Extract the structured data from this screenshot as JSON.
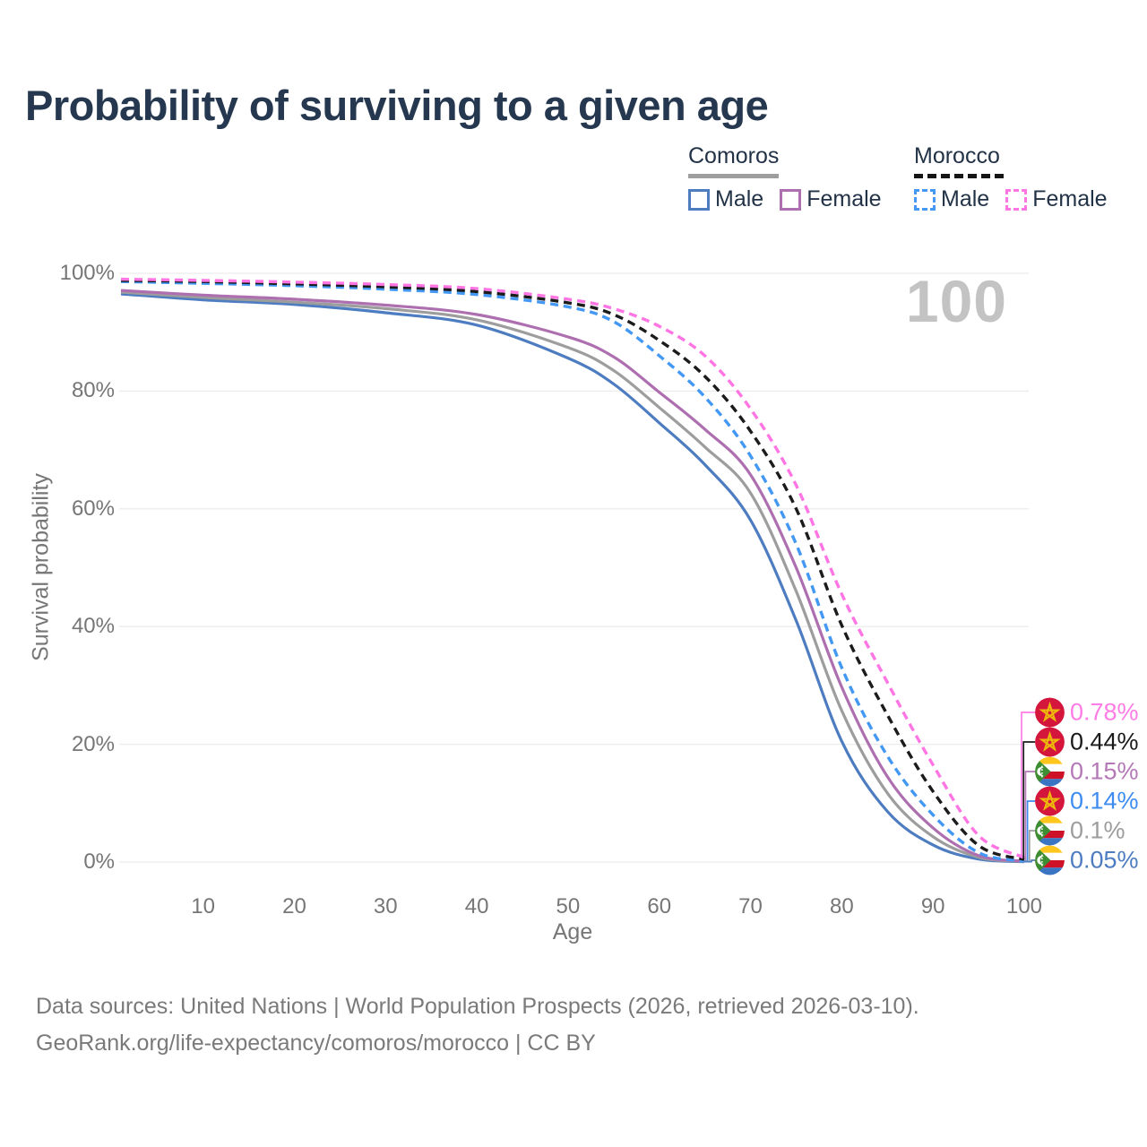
{
  "title": "Probability of surviving to a given age",
  "watermark_age": "100",
  "legend": {
    "groups": [
      {
        "label": "Comoros",
        "line_style": "solid",
        "underline_color": "#9e9e9e",
        "items": [
          {
            "label": "Male",
            "color": "#4d7cc0"
          },
          {
            "label": "Female",
            "color": "#ae6fb0"
          }
        ]
      },
      {
        "label": "Morocco",
        "line_style": "dashed",
        "underline_color": "#151515",
        "items": [
          {
            "label": "Male",
            "color": "#4398f4"
          },
          {
            "label": "Female",
            "color": "#ff75e3"
          }
        ]
      }
    ]
  },
  "axes": {
    "x_label": "Age",
    "y_label": "Survival probability"
  },
  "chart_data": {
    "type": "line",
    "title": "Probability of surviving to a given age",
    "xlabel": "Age",
    "ylabel": "Survival probability",
    "xlim": [
      1,
      100
    ],
    "ylim": [
      0,
      100
    ],
    "grid": "horizontal",
    "x_ticks": [
      10,
      20,
      30,
      40,
      50,
      60,
      70,
      80,
      90,
      100
    ],
    "y_ticks": [
      {
        "value": 0,
        "label": "0%"
      },
      {
        "value": 20,
        "label": "20%"
      },
      {
        "value": 40,
        "label": "40%"
      },
      {
        "value": 60,
        "label": "60%"
      },
      {
        "value": 80,
        "label": "80%"
      },
      {
        "value": 100,
        "label": "100%"
      }
    ],
    "x": [
      1,
      10,
      20,
      30,
      40,
      50,
      55,
      60,
      65,
      70,
      75,
      80,
      85,
      90,
      95,
      100
    ],
    "series": [
      {
        "name": "Comoros Male",
        "country": "Comoros",
        "sex": "Male",
        "color": "#4d7cc0",
        "dashed": false,
        "end_value_pct": 0.05,
        "values": [
          96.5,
          95.5,
          94.7,
          93.3,
          91.2,
          85.6,
          81.2,
          74.6,
          67.5,
          58.1,
          41.0,
          20.5,
          8.6,
          2.9,
          0.5,
          0.05
        ]
      },
      {
        "name": "Comoros",
        "country": "Comoros",
        "sex": "Both",
        "color": "#9d9d9d",
        "dashed": false,
        "end_value_pct": 0.1,
        "values": [
          96.8,
          95.9,
          95.1,
          94.0,
          92.1,
          87.4,
          83.5,
          77.2,
          70.5,
          62.7,
          46.0,
          25.7,
          11.7,
          4.3,
          0.8,
          0.1
        ]
      },
      {
        "name": "Comoros Female",
        "country": "Comoros",
        "sex": "Female",
        "color": "#ae6fb0",
        "dashed": false,
        "end_value_pct": 0.15,
        "values": [
          97.1,
          96.3,
          95.6,
          94.6,
          93.0,
          89.2,
          85.8,
          79.8,
          73.5,
          65.8,
          50.0,
          29.7,
          14.5,
          5.8,
          1.1,
          0.15
        ]
      },
      {
        "name": "Morocco Male",
        "country": "Morocco",
        "sex": "Male",
        "color": "#4398f4",
        "dashed": true,
        "end_value_pct": 0.14,
        "values": [
          98.6,
          98.3,
          97.9,
          97.3,
          96.4,
          94.3,
          91.8,
          86.0,
          79.0,
          69.0,
          54.0,
          33.0,
          18.0,
          8.0,
          1.6,
          0.14
        ]
      },
      {
        "name": "Morocco",
        "country": "Morocco",
        "sex": "Both",
        "color": "#1b1b1b",
        "dashed": true,
        "end_value_pct": 0.44,
        "values": [
          98.8,
          98.6,
          98.2,
          97.7,
          96.9,
          95.0,
          93.0,
          88.6,
          82.5,
          73.2,
          60.0,
          40.2,
          25.0,
          12.0,
          2.8,
          0.44
        ]
      },
      {
        "name": "Morocco Female",
        "country": "Morocco",
        "sex": "Female",
        "color": "#ff75e3",
        "dashed": true,
        "end_value_pct": 0.78,
        "values": [
          99.0,
          98.8,
          98.5,
          98.1,
          97.4,
          95.6,
          94.0,
          91.0,
          86.0,
          77.0,
          64.0,
          45.5,
          30.5,
          16.5,
          4.5,
          0.78
        ]
      }
    ],
    "legend_position": "top-right"
  },
  "end_labels": [
    {
      "value": "0.78%",
      "color": "#ff7ce6",
      "flag": "morocco",
      "series": "Morocco Female"
    },
    {
      "value": "0.44%",
      "color": "#1b1b1b",
      "flag": "morocco",
      "series": "Morocco"
    },
    {
      "value": "0.15%",
      "color": "#b478b6",
      "flag": "comoros",
      "series": "Comoros Female"
    },
    {
      "value": "0.14%",
      "color": "#3e8cf0",
      "flag": "morocco",
      "series": "Morocco Male"
    },
    {
      "value": "0.1%",
      "color": "#9d9d9d",
      "flag": "comoros",
      "series": "Comoros"
    },
    {
      "value": "0.05%",
      "color": "#4d7cc0",
      "flag": "comoros",
      "series": "Comoros Male"
    }
  ],
  "footer": {
    "line1": "Data sources: United Nations | World Population Prospects (2026, retrieved 2026-03-10).",
    "line2": "GeoRank.org/life-expectancy/comoros/morocco | CC BY"
  }
}
